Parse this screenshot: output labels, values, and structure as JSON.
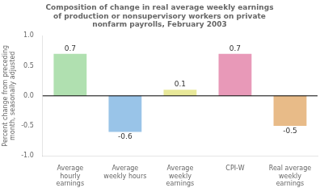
{
  "chart_data": {
    "type": "bar",
    "title": "Composition of change in real average weekly earnings\nof production or nonsupervisory workers on private\nnonfarm payrolls, February 2003",
    "categories": [
      "Average\nhourly\nearnings",
      "Average\nweekly hours",
      "Average\nweekly\nearnings",
      "CPI-W",
      "Real average\nweekly\nearnings"
    ],
    "values": [
      0.7,
      -0.6,
      0.1,
      0.7,
      -0.5
    ],
    "colors": [
      "#b0e0b0",
      "#99c4e8",
      "#e8e899",
      "#e899b8",
      "#e8bb88"
    ],
    "ylabel": "Percent change from preceding\nmonth, seasonally adjusted",
    "ylim": [
      -1.0,
      1.0
    ],
    "yticks": [
      {
        "value": -1.0,
        "label": "-1.0"
      },
      -0.5,
      {
        "value": 0,
        "label": "0.0"
      },
      0.5,
      {
        "value": 1.0,
        "label": "1.0"
      }
    ],
    "grid": false,
    "data_labels": true
  }
}
